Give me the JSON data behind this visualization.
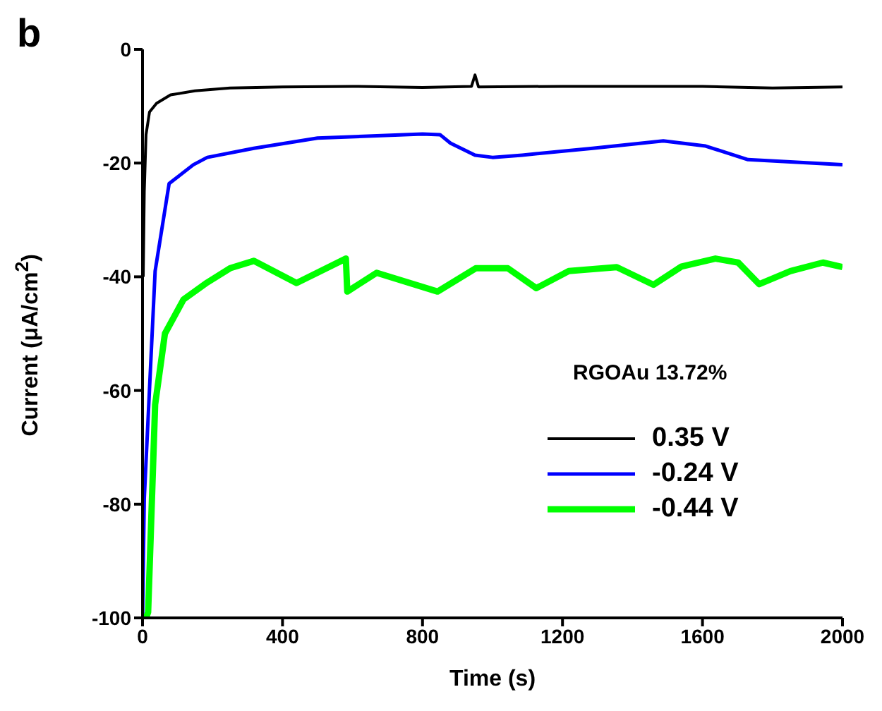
{
  "chart_data": {
    "type": "line",
    "xlabel": "Time (s)",
    "ylabel": "Current (μA/cm$^{2}$)",
    "xlim": [
      0,
      2000
    ],
    "xticks": [
      0,
      400,
      800,
      1200,
      1600,
      2000
    ],
    "ylim": [
      -100,
      0
    ],
    "yticks": [
      -100,
      -80,
      -60,
      -40,
      -20,
      0
    ],
    "grid": false,
    "legend": "bottom right",
    "marker": "none",
    "line_style": "solid",
    "annotations": [
      "b",
      "RGOAu 13.72%"
    ],
    "series": [
      {
        "name": "0.35 V",
        "color": "#000000",
        "x": [
          2,
          5,
          10,
          20,
          40,
          80,
          150,
          250,
          400,
          600,
          800,
          940,
          950,
          960,
          1200,
          1600,
          1800,
          2000
        ],
        "values": [
          -40,
          -25,
          -15,
          -11,
          -9.5,
          -8,
          -7.3,
          -6.8,
          -6.6,
          -6.5,
          -6.7,
          -6.5,
          -4.5,
          -6.6,
          -6.5,
          -6.5,
          -6.8,
          -6.6
        ]
      },
      {
        "name": "-0.24 V",
        "color": "#0000ff",
        "x": [
          0,
          5,
          36,
          76,
          145,
          185,
          318,
          500,
          800,
          850,
          880,
          950,
          1000,
          1085,
          1286,
          1488,
          1609,
          1730,
          2000
        ],
        "values": [
          -100,
          -79,
          -39,
          -23.6,
          -20.3,
          -19,
          -17.4,
          -15.6,
          -14.9,
          -15,
          -16.5,
          -18.6,
          -19,
          -18.6,
          -17.4,
          -16.1,
          -17,
          -19.4,
          -20.3
        ]
      },
      {
        "name": "-0.44 V",
        "color": "#00ff00",
        "x": [
          10,
          16,
          36,
          64,
          117,
          185,
          250,
          318,
          440,
          581,
          585,
          669,
          843,
          952,
          1044,
          1125,
          1218,
          1355,
          1460,
          1540,
          1637,
          1702,
          1762,
          1851,
          1944,
          2000
        ],
        "values": [
          -100,
          -99,
          -62.5,
          -50,
          -44,
          -41,
          -38.5,
          -37.2,
          -41.1,
          -36.8,
          -42.6,
          -39.3,
          -42.6,
          -38.5,
          -38.5,
          -42,
          -39,
          -38.3,
          -41.4,
          -38.2,
          -36.8,
          -37.5,
          -41.3,
          -39,
          -37.5,
          -38.3
        ]
      }
    ]
  }
}
